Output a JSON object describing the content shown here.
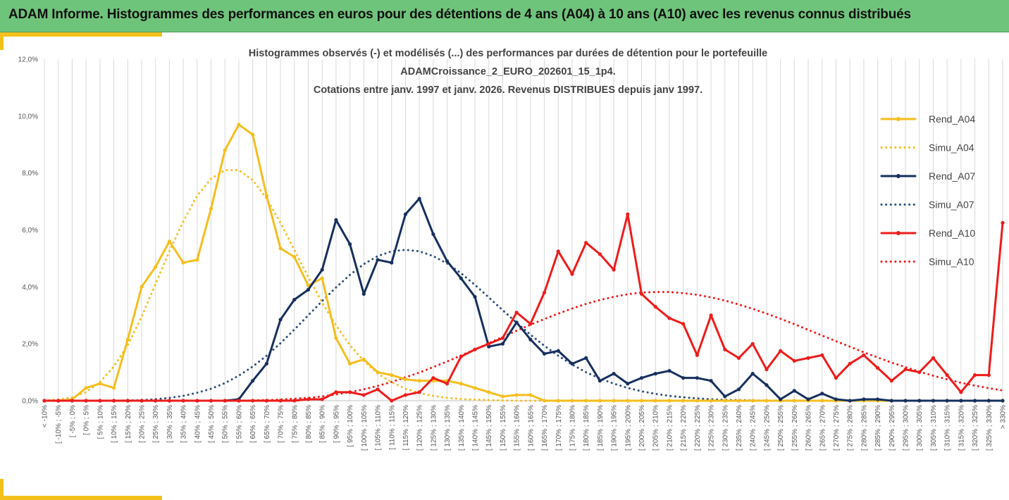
{
  "header": {
    "title": "ADAM Informe. Histogrammes des performances en euros pour des détentions de 4 ans (A04) à 10 ans (A10) avec les revenus connus distribués"
  },
  "chart_data": {
    "type": "line",
    "title": [
      "Histogrammes observés (-) et modélisés (...) des performances par durées de détention pour le portefeuille",
      "ADAMCroissance_2_EURO_202601_15_1p4.",
      "Cotations entre janv. 1997 et janv. 2026. Revenus DISTRIBUES depuis janv 1997."
    ],
    "ylim": [
      0,
      12
    ],
    "yticks": [
      "0,0%",
      "2,0%",
      "4,0%",
      "6,0%",
      "8,0%",
      "10,0%",
      "12,0%"
    ],
    "grid": "vertical",
    "legend_position": "right",
    "categories": [
      "< -10%",
      "[ -10% ; -5%",
      "[ -5% ; 0%",
      "[ 0% ; 5%",
      "[ 5% ; 10%",
      "[ 10% ; 15%",
      "[ 15% ; 20%",
      "[ 20% ; 25%",
      "[ 25% ; 30%",
      "[ 30% ; 35%",
      "[ 35% ; 40%",
      "[ 40% ; 45%",
      "[ 45% ; 50%",
      "[ 50% ; 55%",
      "[ 55% ; 60%",
      "[ 60% ; 65%",
      "[ 65% ; 70%",
      "[ 70% ; 75%",
      "[ 75% ; 80%",
      "[ 80% ; 85%",
      "[ 85% ; 90%",
      "[ 90% ; 95%",
      "[ 95% ; 100%",
      "[ 100% ; 105%",
      "[ 105% ; 110%",
      "[ 110% ; 115%",
      "[ 115% ; 120%",
      "[ 120% ; 125%",
      "[ 125% ; 130%",
      "[ 130% ; 135%",
      "[ 135% ; 140%",
      "[ 140% ; 145%",
      "[ 145% ; 150%",
      "[ 150% ; 155%",
      "[ 155% ; 160%",
      "[ 160% ; 165%",
      "[ 165% ; 170%",
      "[ 170% ; 175%",
      "[ 175% ; 180%",
      "[ 180% ; 185%",
      "[ 185% ; 190%",
      "[ 190% ; 195%",
      "[ 195% ; 200%",
      "[ 200% ; 205%",
      "[ 205% ; 210%",
      "[ 210% ; 215%",
      "[ 215% ; 220%",
      "[ 220% ; 225%",
      "[ 225% ; 230%",
      "[ 230% ; 235%",
      "[ 235% ; 240%",
      "[ 240% ; 245%",
      "[ 245% ; 250%",
      "[ 250% ; 255%",
      "[ 255% ; 260%",
      "[ 260% ; 265%",
      "[ 265% ; 270%",
      "[ 270% ; 275%",
      "[ 275% ; 280%",
      "[ 280% ; 285%",
      "[ 285% ; 290%",
      "[ 290% ; 295%",
      "[ 295% ; 300%",
      "[ 300% ; 305%",
      "[ 305% ; 310%",
      "[ 310% ; 315%",
      "[ 315% ; 320%",
      "[ 320% ; 325%",
      "[ 325% ; 330%",
      "> 330%"
    ],
    "series": [
      {
        "name": "Rend_A04",
        "color": "#f5be1e",
        "style": "solid",
        "markers": true,
        "values": [
          0,
          0,
          0.05,
          0.45,
          0.6,
          0.45,
          2.15,
          4.0,
          4.7,
          5.6,
          4.85,
          4.95,
          6.75,
          8.8,
          9.7,
          9.35,
          7.2,
          5.35,
          5.05,
          4.05,
          4.3,
          2.2,
          1.3,
          1.45,
          1.0,
          0.9,
          0.75,
          0.7,
          0.7,
          0.7,
          0.6,
          0.45,
          0.3,
          0.15,
          0.2,
          0.2,
          0,
          0,
          0,
          0,
          0,
          0,
          0,
          0,
          0,
          0,
          0,
          0,
          0,
          0,
          0,
          0,
          0,
          0,
          0,
          0,
          0,
          0,
          0,
          0,
          0,
          0,
          0,
          0,
          0,
          0,
          0,
          0,
          0,
          0
        ]
      },
      {
        "name": "Simu_A04",
        "color": "#f5be1e",
        "style": "dotted",
        "markers": false,
        "values": [
          0.01,
          0.04,
          0.12,
          0.3,
          0.65,
          1.2,
          1.95,
          2.95,
          4.1,
          5.25,
          6.3,
          7.2,
          7.8,
          8.1,
          8.1,
          7.75,
          7.1,
          6.25,
          5.3,
          4.35,
          3.45,
          2.65,
          1.95,
          1.4,
          0.95,
          0.65,
          0.42,
          0.27,
          0.17,
          0.1,
          0.06,
          0.04,
          0.02,
          0.01,
          0,
          0,
          0,
          0,
          0,
          0,
          0,
          0,
          0,
          0,
          0,
          0,
          0,
          0,
          0,
          0,
          0,
          0,
          0,
          0,
          0,
          0,
          0,
          0,
          0,
          0,
          0,
          0,
          0,
          0,
          0,
          0,
          0,
          0,
          0,
          0
        ]
      },
      {
        "name": "Rend_A07",
        "color": "#16305e",
        "style": "solid",
        "markers": true,
        "values": [
          0,
          0,
          0,
          0,
          0,
          0,
          0,
          0,
          0,
          0,
          0,
          0,
          0,
          0,
          0.05,
          0.7,
          1.3,
          2.85,
          3.55,
          3.9,
          4.6,
          6.35,
          5.5,
          3.75,
          4.95,
          4.85,
          6.55,
          7.1,
          5.85,
          4.9,
          4.3,
          3.65,
          1.9,
          2.0,
          2.75,
          2.15,
          1.65,
          1.75,
          1.3,
          1.5,
          0.7,
          0.95,
          0.6,
          0.8,
          0.95,
          1.05,
          0.8,
          0.8,
          0.7,
          0.15,
          0.4,
          0.95,
          0.55,
          0.05,
          0.35,
          0.05,
          0.25,
          0.05,
          0,
          0.05,
          0.05,
          0,
          0,
          0,
          0,
          0,
          0,
          0,
          0,
          0
        ]
      },
      {
        "name": "Simu_A07",
        "color": "#2d4f7c",
        "style": "dotted",
        "markers": false,
        "values": [
          0,
          0,
          0,
          0,
          0,
          0,
          0.01,
          0.02,
          0.05,
          0.1,
          0.17,
          0.28,
          0.42,
          0.62,
          0.88,
          1.2,
          1.58,
          2.02,
          2.5,
          3.0,
          3.5,
          3.98,
          4.42,
          4.8,
          5.08,
          5.25,
          5.3,
          5.25,
          5.08,
          4.82,
          4.48,
          4.07,
          3.63,
          3.18,
          2.74,
          2.32,
          1.93,
          1.58,
          1.27,
          1.0,
          0.78,
          0.6,
          0.45,
          0.33,
          0.24,
          0.17,
          0.12,
          0.08,
          0.05,
          0.03,
          0.02,
          0.01,
          0,
          0,
          0,
          0,
          0,
          0,
          0,
          0,
          0,
          0,
          0,
          0,
          0,
          0,
          0,
          0,
          0,
          0
        ]
      },
      {
        "name": "Rend_A10",
        "color": "#ee1c1c",
        "style": "solid",
        "markers": true,
        "values": [
          0,
          0,
          0,
          0,
          0,
          0,
          0,
          0,
          0,
          0,
          0,
          0,
          0,
          0,
          0,
          0,
          0,
          0,
          0,
          0.05,
          0.05,
          0.3,
          0.3,
          0.2,
          0.4,
          0,
          0.2,
          0.3,
          0.8,
          0.6,
          1.55,
          1.8,
          2.0,
          2.2,
          3.1,
          2.7,
          3.8,
          5.25,
          4.45,
          5.55,
          5.15,
          4.6,
          6.55,
          3.75,
          3.3,
          2.9,
          2.7,
          1.6,
          3.0,
          1.8,
          1.5,
          2.0,
          1.1,
          1.75,
          1.4,
          1.5,
          1.6,
          0.8,
          1.3,
          1.6,
          1.15,
          0.7,
          1.1,
          1.0,
          1.5,
          0.9,
          0.3,
          0.9,
          0.9,
          6.25
        ]
      },
      {
        "name": "Simu_A10",
        "color": "#ee1c1c",
        "style": "dotted",
        "markers": false,
        "values": [
          0,
          0,
          0,
          0,
          0,
          0,
          0,
          0,
          0,
          0,
          0,
          0,
          0,
          0,
          0,
          0.01,
          0.02,
          0.04,
          0.07,
          0.1,
          0.15,
          0.22,
          0.3,
          0.4,
          0.52,
          0.66,
          0.82,
          0.99,
          1.18,
          1.38,
          1.59,
          1.8,
          2.02,
          2.24,
          2.46,
          2.67,
          2.87,
          3.06,
          3.24,
          3.4,
          3.54,
          3.65,
          3.74,
          3.8,
          3.82,
          3.82,
          3.78,
          3.72,
          3.63,
          3.52,
          3.38,
          3.23,
          3.06,
          2.88,
          2.69,
          2.49,
          2.29,
          2.09,
          1.9,
          1.7,
          1.52,
          1.34,
          1.18,
          1.02,
          0.88,
          0.75,
          0.63,
          0.53,
          0.44,
          0.36
        ]
      }
    ]
  }
}
